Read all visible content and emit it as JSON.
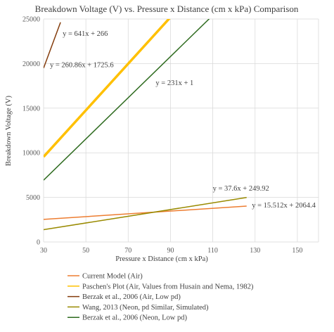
{
  "chart_data": {
    "type": "line",
    "title": "Breakdown Voltage (V) vs. Pressure x Distance (cm x kPa) Comparison",
    "xlabel": "Pressure x Distance (cm x kPa)",
    "ylabel": "Breakdown Voltage (V)",
    "xlim": [
      30,
      160
    ],
    "ylim": [
      0,
      25000
    ],
    "xticks": [
      30,
      50,
      70,
      90,
      110,
      130,
      150
    ],
    "yticks": [
      0,
      5000,
      10000,
      15000,
      20000,
      25000
    ],
    "grid": true,
    "legend": "bottom",
    "series": [
      {
        "name": "Current Model (Air)",
        "color": "#ED7D31",
        "x": [
          30,
          126
        ],
        "y": [
          2530,
          4019
        ]
      },
      {
        "name": "Paschen's Plot (Air, Values from Husain and Nema, 1982)",
        "color": "#FFC000",
        "x": [
          30,
          90
        ],
        "y": [
          9551,
          25203
        ]
      },
      {
        "name": "Berzak et al., 2006 (Air, Low pd)",
        "color": "#843C0C",
        "x": [
          30,
          38
        ],
        "y": [
          19496,
          24624
        ]
      },
      {
        "name": "Wang, 2013 (Neon, pd Similar, Simulated)",
        "color": "#998A00",
        "x": [
          30,
          126
        ],
        "y": [
          1378,
          4988
        ]
      },
      {
        "name": "Berzak et al., 2006 (Neon, Low pd)",
        "color": "#2E6B1F",
        "x": [
          30,
          109
        ],
        "y": [
          6931,
          25180
        ]
      }
    ],
    "annotations": [
      {
        "text": "y = 641x + 266",
        "x": 39,
        "y": 23100
      },
      {
        "text": "y = 260.86x + 1725.6",
        "x": 33,
        "y": 19600
      },
      {
        "text": "y = 231x + 1",
        "x": 83,
        "y": 17600
      },
      {
        "text": "y = 37.6x + 249.92",
        "x": 110,
        "y": 5750
      },
      {
        "text": "y = 15.512x + 2064.4",
        "x": 128.5,
        "y": 3850
      }
    ]
  }
}
